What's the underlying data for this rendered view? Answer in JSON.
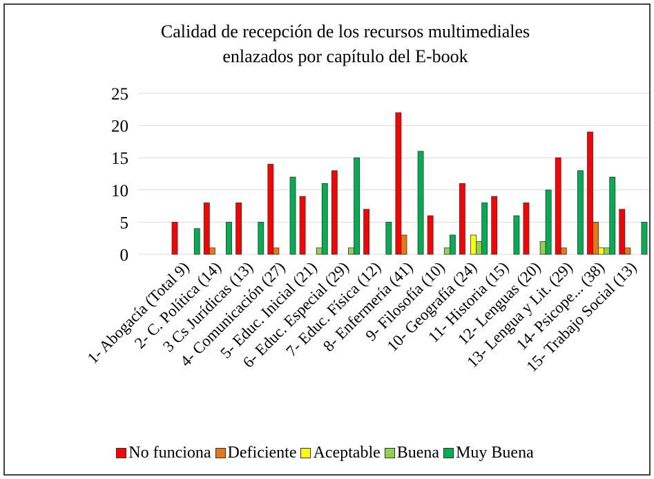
{
  "chart_data": {
    "type": "bar",
    "title": "Calidad de recepción de los recursos multimediales enlazados por capítulo del E-book",
    "categories": [
      "1- Abogacía (Total 9)",
      "2- C. Política (14)",
      "3 Cs Jurídicas (13)",
      "4- Comunicación (27)",
      "5- Educ. Inicial (21)",
      "6- Educ. Especial (29)",
      "7- Educ. Física (12)",
      "8- Enfermería (41)",
      "9- Filosofía (10)",
      "10- Geografía (24)",
      "11- Historia (15)",
      "12- Lenguas (20)",
      "13- Lengua y Lit. (29)",
      "14- Psicope... (38)",
      "15- Trabajo Social (13)"
    ],
    "series": [
      {
        "name": "No funciona",
        "color": "#ff0000",
        "values": [
          5,
          8,
          8,
          14,
          9,
          13,
          7,
          22,
          6,
          11,
          9,
          8,
          15,
          19,
          7
        ]
      },
      {
        "name": "Deficiente",
        "color": "#e8790f",
        "values": [
          0,
          1,
          0,
          1,
          0,
          0,
          0,
          3,
          0,
          0,
          0,
          0,
          1,
          5,
          1
        ]
      },
      {
        "name": "Aceptable",
        "color": "#ffff00",
        "values": [
          0,
          0,
          0,
          0,
          0,
          0,
          0,
          0,
          0,
          3,
          0,
          0,
          0,
          1,
          0
        ]
      },
      {
        "name": "Buena",
        "color": "#92d050",
        "values": [
          0,
          0,
          0,
          0,
          1,
          1,
          0,
          0,
          1,
          2,
          0,
          2,
          0,
          1,
          0
        ]
      },
      {
        "name": "Muy Buena",
        "color": "#00b050",
        "values": [
          4,
          5,
          5,
          12,
          11,
          15,
          5,
          16,
          3,
          8,
          6,
          10,
          13,
          12,
          5
        ]
      }
    ],
    "ylim": [
      0,
      25
    ],
    "yticks": [
      0,
      5,
      10,
      15,
      20,
      25
    ],
    "grid": true,
    "legend": "bottom"
  }
}
